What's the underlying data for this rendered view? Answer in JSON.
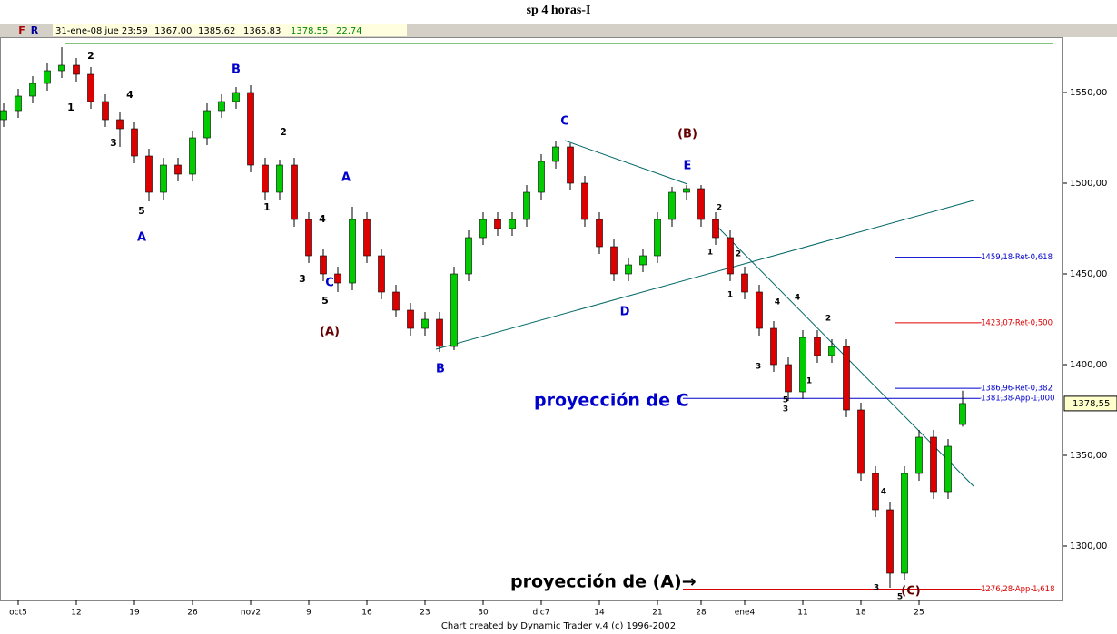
{
  "chart_data": {
    "type": "candlestick",
    "title": "sp 4 horas-I",
    "toolbar": [
      "F",
      "R"
    ],
    "header": {
      "date": "31-ene-08 jue 23:59",
      "open": "1367,00",
      "high": "1385,62",
      "low": "1365,83",
      "close": "1378,55",
      "change": "22,74"
    },
    "footer": "Chart created by Dynamic Trader v.4  (c)  1996-2002",
    "categories": [
      null,
      "oct5",
      null,
      null,
      null,
      "12",
      null,
      null,
      null,
      "19",
      null,
      null,
      null,
      "26",
      null,
      null,
      null,
      "nov2",
      null,
      null,
      null,
      "9",
      null,
      null,
      null,
      "16",
      null,
      null,
      null,
      "23",
      null,
      null,
      null,
      "30",
      null,
      null,
      null,
      "dic7",
      null,
      null,
      null,
      "14",
      null,
      null,
      null,
      "21",
      null,
      null,
      "28",
      null,
      null,
      "ene4",
      null,
      null,
      null,
      "11",
      null,
      null,
      null,
      "18",
      null,
      null,
      null,
      "25",
      null,
      null,
      null
    ],
    "open": [
      1535,
      1540,
      1548,
      1555,
      1562,
      1565,
      1560,
      1545,
      1535,
      1530,
      1515,
      1495,
      1510,
      1505,
      1525,
      1540,
      1545,
      1550,
      1510,
      1495,
      1510,
      1480,
      1460,
      1450,
      1445,
      1480,
      1460,
      1440,
      1430,
      1420,
      1425,
      1410,
      1450,
      1470,
      1480,
      1475,
      1480,
      1495,
      1512,
      1520,
      1500,
      1480,
      1465,
      1450,
      1455,
      1460,
      1480,
      1495,
      1497,
      1480,
      1470,
      1450,
      1440,
      1420,
      1400,
      1385,
      1415,
      1405,
      1410,
      1375,
      1340,
      1320,
      1285,
      1340,
      1360,
      1330,
      1367
    ],
    "high": [
      1544,
      1552,
      1559,
      1566,
      1575,
      1569,
      1564,
      1549,
      1539,
      1534,
      1519,
      1514,
      1514,
      1529,
      1544,
      1549,
      1553,
      1554,
      1514,
      1513,
      1514,
      1484,
      1464,
      1454,
      1487,
      1484,
      1464,
      1444,
      1434,
      1429,
      1429,
      1454,
      1474,
      1484,
      1484,
      1484,
      1499,
      1516,
      1523,
      1522,
      1504,
      1484,
      1469,
      1459,
      1464,
      1484,
      1498,
      1499,
      1499,
      1484,
      1474,
      1454,
      1444,
      1424,
      1404,
      1419,
      1419,
      1414,
      1414,
      1379,
      1344,
      1324,
      1344,
      1364,
      1364,
      1359,
      1385.62
    ],
    "low": [
      1531,
      1536,
      1544,
      1551,
      1558,
      1556,
      1541,
      1531,
      1520,
      1511,
      1490,
      1491,
      1501,
      1501,
      1521,
      1536,
      1541,
      1506,
      1491,
      1491,
      1476,
      1456,
      1446,
      1440,
      1441,
      1456,
      1436,
      1426,
      1416,
      1416,
      1407,
      1408,
      1446,
      1466,
      1471,
      1471,
      1476,
      1491,
      1508,
      1496,
      1476,
      1461,
      1446,
      1446,
      1451,
      1456,
      1476,
      1491,
      1476,
      1466,
      1446,
      1436,
      1416,
      1396,
      1380,
      1381,
      1401,
      1401,
      1371,
      1336,
      1316,
      1277,
      1281,
      1336,
      1326,
      1326,
      1365.83
    ],
    "close": [
      1540,
      1548,
      1555,
      1562,
      1565,
      1560,
      1545,
      1535,
      1530,
      1515,
      1495,
      1510,
      1505,
      1525,
      1540,
      1545,
      1550,
      1510,
      1495,
      1510,
      1480,
      1460,
      1450,
      1445,
      1480,
      1460,
      1440,
      1430,
      1420,
      1425,
      1410,
      1450,
      1470,
      1480,
      1475,
      1480,
      1495,
      1512,
      1520,
      1500,
      1480,
      1465,
      1450,
      1455,
      1460,
      1480,
      1495,
      1497,
      1480,
      1470,
      1450,
      1440,
      1420,
      1400,
      1385,
      1415,
      1405,
      1410,
      1375,
      1340,
      1320,
      1285,
      1340,
      1360,
      1330,
      1355,
      1378.55
    ],
    "up_color": "#00cc00",
    "down_color": "#dd0000",
    "ylim": [
      1270,
      1580
    ],
    "yticks": [
      {
        "value": 1300,
        "label": "1300,00"
      },
      {
        "value": 1350,
        "label": "1350,00"
      },
      {
        "value": 1400,
        "label": "1400,00"
      },
      {
        "value": 1450,
        "label": "1450,00"
      },
      {
        "value": 1500,
        "label": "1500,00"
      },
      {
        "value": 1550,
        "label": "1550,00"
      }
    ],
    "price_tag": {
      "value": 1378.55,
      "label": "1378,55"
    },
    "levels": [
      {
        "value": 1459.18,
        "label": "1459,18 Ret 0,618",
        "color": "#0000cc"
      },
      {
        "value": 1423.07,
        "label": "1423,07 Ret 0,500",
        "color": "#dd0000"
      },
      {
        "value": 1386.96,
        "label": "1386,96 Ret 0,382",
        "color": "#0000cc"
      },
      {
        "value": 1381.38,
        "label": "1381,38 App 1,000",
        "color": "#0000cc"
      },
      {
        "value": 1276.28,
        "label": "1276,28 App 1,618",
        "color": "#dd0000"
      }
    ],
    "wave_labels": [
      {
        "text": "2",
        "color": "#000"
      },
      {
        "text": "1",
        "color": "#000"
      },
      {
        "text": "4",
        "color": "#000"
      },
      {
        "text": "3",
        "color": "#000"
      },
      {
        "text": "5",
        "color": "#000"
      },
      {
        "text": "2",
        "color": "#000"
      },
      {
        "text": "1",
        "color": "#000"
      },
      {
        "text": "4",
        "color": "#000"
      },
      {
        "text": "3",
        "color": "#000"
      },
      {
        "text": "5",
        "color": "#000"
      },
      {
        "text": "2",
        "color": "#000"
      },
      {
        "text": "1",
        "color": "#000"
      },
      {
        "text": "2",
        "color": "#000"
      },
      {
        "text": "1",
        "color": "#000"
      },
      {
        "text": "4",
        "color": "#000"
      },
      {
        "text": "4",
        "color": "#000"
      },
      {
        "text": "3",
        "color": "#000"
      },
      {
        "text": "2",
        "color": "#000"
      },
      {
        "text": "1",
        "color": "#000"
      },
      {
        "text": "5",
        "color": "#000"
      },
      {
        "text": "3",
        "color": "#000"
      },
      {
        "text": "4",
        "color": "#000"
      },
      {
        "text": "3",
        "color": "#000"
      },
      {
        "text": "5",
        "color": "#000"
      },
      {
        "text": "B",
        "color": "#0000cc"
      },
      {
        "text": "A",
        "color": "#0000cc"
      },
      {
        "text": "C",
        "color": "#0000cc"
      },
      {
        "text": "A",
        "color": "#0000cc"
      },
      {
        "text": "C",
        "color": "#0000cc"
      },
      {
        "text": "E",
        "color": "#0000cc"
      },
      {
        "text": "D",
        "color": "#0000cc"
      },
      {
        "text": "B",
        "color": "#0000cc"
      },
      {
        "text": "(B)",
        "color": "#660000"
      },
      {
        "text": "(A)",
        "color": "#660000"
      },
      {
        "text": "(C)",
        "color": "#660000"
      }
    ],
    "projections": [
      {
        "text": "proyección de C",
        "color": "#0000cc"
      },
      {
        "text": "proyección de (A)→",
        "color": "#000000"
      }
    ]
  }
}
